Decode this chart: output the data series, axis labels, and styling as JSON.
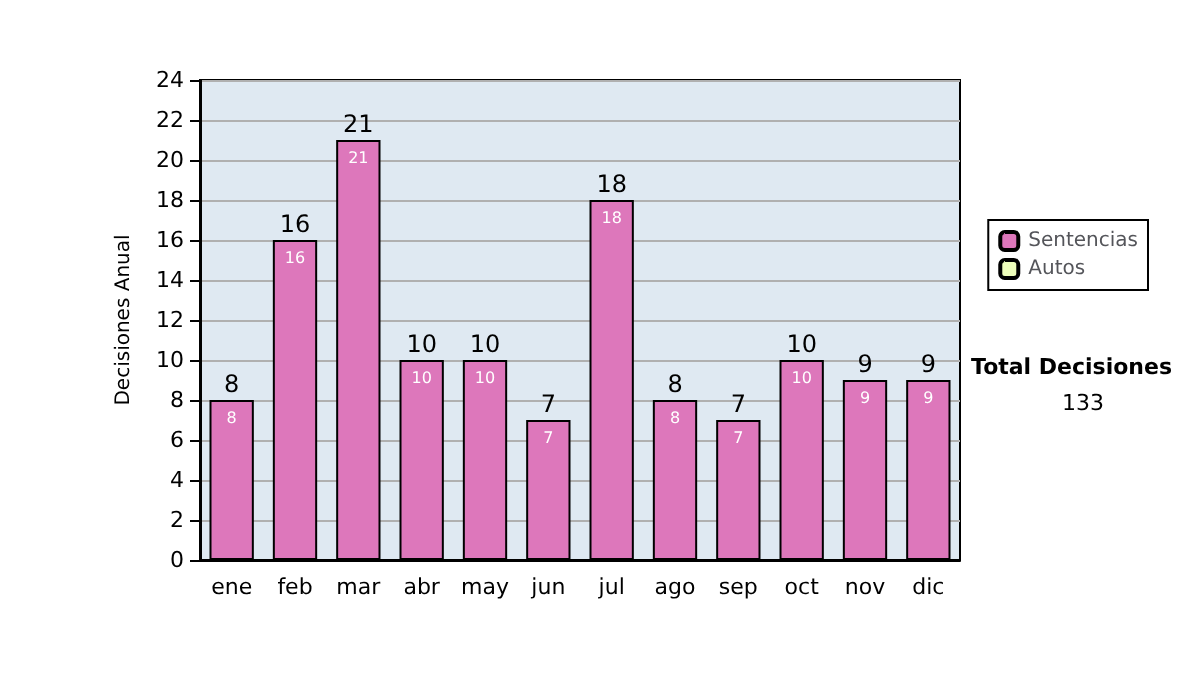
{
  "chart_data": {
    "type": "bar",
    "ylabel": "Decisiones Anual",
    "categories": [
      "ene",
      "feb",
      "mar",
      "abr",
      "may",
      "jun",
      "jul",
      "ago",
      "sep",
      "oct",
      "nov",
      "dic"
    ],
    "series": [
      {
        "name": "Sentencias",
        "color": "#dd77bb",
        "values": [
          8,
          16,
          21,
          10,
          10,
          7,
          18,
          8,
          7,
          10,
          9,
          9
        ],
        "value_labels": [
          "8",
          "16",
          "21",
          "10",
          "10",
          "7",
          "18",
          "8",
          "7",
          "10",
          "9",
          "9"
        ]
      },
      {
        "name": "Autos",
        "color": "#eeffbb",
        "values": [
          0,
          0,
          0,
          0,
          0,
          0,
          0,
          0,
          0,
          0,
          0,
          0
        ]
      }
    ],
    "stacked": true,
    "totals": [
      "8",
      "16",
      "21",
      "10",
      "10",
      "7",
      "18",
      "8",
      "7",
      "10",
      "9",
      "9"
    ],
    "ylim": [
      0,
      24
    ],
    "yticks": [
      0,
      2,
      4,
      6,
      8,
      10,
      12,
      14,
      16,
      18,
      20,
      22,
      24
    ],
    "grid": "y",
    "legend": "right",
    "annotations": [
      "Total Decisiones",
      "133"
    ]
  }
}
